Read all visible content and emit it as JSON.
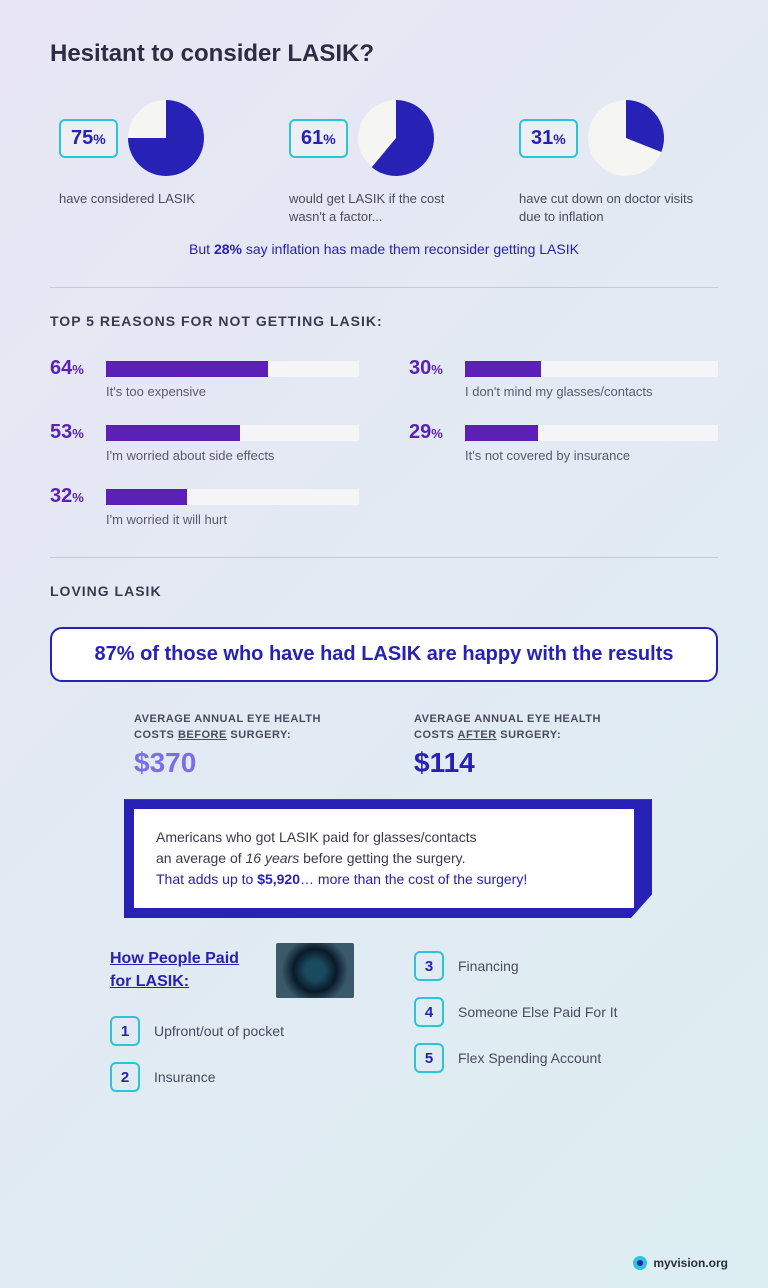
{
  "colors": {
    "primary_blue": "#2721b5",
    "purple": "#5b21b6",
    "teal": "#2bc4d8",
    "text_dark": "#2c2c42",
    "text_mid": "#4a4a5e",
    "bar_track": "#f5f5f7",
    "pie_bg": "#f5f5f2",
    "bg_gradient_start": "#e8e6f4",
    "bg_gradient_end": "#dceef2"
  },
  "header": {
    "title": "Hesitant to consider LASIK?"
  },
  "pies": [
    {
      "pct": 75,
      "caption": "have considered LASIK"
    },
    {
      "pct": 61,
      "caption": "would get LASIK if the cost wasn't a factor..."
    },
    {
      "pct": 31,
      "caption": "have cut down on doctor visits due to inflation"
    }
  ],
  "inflation_note": {
    "prefix": "But ",
    "bold": "28%",
    "rest": " say inflation has made them reconsider getting LASIK"
  },
  "reasons": {
    "title": "TOP 5 REASONS FOR NOT GETTING LASIK:",
    "items": [
      {
        "pct": 64,
        "label": "It's too expensive"
      },
      {
        "pct": 30,
        "label": "I don't mind my glasses/contacts"
      },
      {
        "pct": 53,
        "label": "I'm worried about side effects"
      },
      {
        "pct": 29,
        "label": "It's not covered by insurance"
      },
      {
        "pct": 32,
        "label": "I'm worried it will hurt"
      }
    ]
  },
  "loving": {
    "title": "LOVING LASIK",
    "banner": "87% of those who have had LASIK are happy with the results",
    "costs": {
      "before": {
        "label_line1": "AVERAGE ANNUAL EYE HEALTH",
        "label_line2_prefix": "COSTS ",
        "label_ul": "BEFORE",
        "label_suffix": " SURGERY:",
        "value": "$370",
        "color": "#7c6ee8"
      },
      "after": {
        "label_line1": "AVERAGE ANNUAL EYE HEALTH",
        "label_line2_prefix": "COSTS ",
        "label_ul": "AFTER",
        "label_suffix": " SURGERY:",
        "value": "$114",
        "color": "#2721b5"
      }
    },
    "quote": {
      "line1a": "Americans who got LASIK paid for glasses/contacts",
      "line1b_prefix": "an average of ",
      "line1b_em": "16 years",
      "line1b_suffix": " before getting the surgery.",
      "line2_prefix": "That adds up to ",
      "line2_bold": "$5,920",
      "line2_suffix": "… more than the cost of the surgery!"
    },
    "paid": {
      "title": "How People Paid for LASIK:",
      "items": [
        {
          "n": "1",
          "label": "Upfront/out of pocket"
        },
        {
          "n": "2",
          "label": "Insurance"
        },
        {
          "n": "3",
          "label": "Financing"
        },
        {
          "n": "4",
          "label": "Someone Else Paid For It"
        },
        {
          "n": "5",
          "label": "Flex Spending Account"
        }
      ]
    }
  },
  "footer": {
    "brand": "myvision.org"
  }
}
